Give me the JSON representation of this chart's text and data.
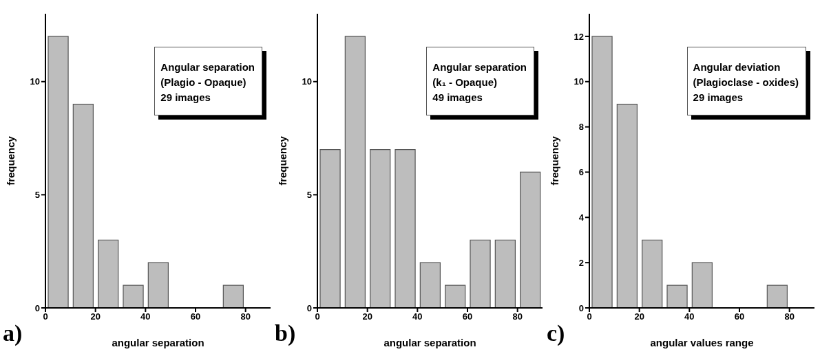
{
  "chart_data": [
    {
      "type": "histogram",
      "bins": [
        0,
        10,
        20,
        30,
        40,
        50,
        60,
        70,
        80
      ],
      "values": [
        12,
        9,
        3,
        1,
        2,
        0,
        0,
        1
      ],
      "color": "#bdbdbd",
      "xlabel": "angular separation",
      "ylabel": "frequency",
      "xlim": [
        0,
        90
      ],
      "xticks": [
        0,
        20,
        40,
        60,
        80
      ],
      "ylim": [
        0,
        13
      ],
      "yticks": [
        0,
        5,
        10
      ],
      "grid": false,
      "annotations": [
        "a)",
        "Angular separation\n(Plagio - Opaque)\n29 images"
      ]
    },
    {
      "type": "histogram",
      "bins": [
        0,
        10,
        20,
        30,
        40,
        50,
        60,
        70,
        80,
        90
      ],
      "values": [
        7,
        12,
        7,
        7,
        2,
        1,
        3,
        3,
        6
      ],
      "color": "#bdbdbd",
      "xlabel": "angular separation",
      "ylabel": "frequency",
      "xlim": [
        0,
        90
      ],
      "xticks": [
        0,
        20,
        40,
        60,
        80
      ],
      "ylim": [
        0,
        13
      ],
      "yticks": [
        0,
        5,
        10
      ],
      "grid": false,
      "annotations": [
        "b)",
        "Angular separation\n(k₁ - Opaque)\n49 images"
      ]
    },
    {
      "type": "histogram",
      "bins": [
        0,
        10,
        20,
        30,
        40,
        50,
        60,
        70,
        80
      ],
      "values": [
        12,
        9,
        3,
        1,
        2,
        0,
        0,
        1
      ],
      "color": "#bdbdbd",
      "xlabel": "angular values range",
      "ylabel": "frequency",
      "xlim": [
        0,
        90
      ],
      "xticks": [
        0,
        20,
        40,
        60,
        80
      ],
      "ylim": [
        0,
        13
      ],
      "yticks": [
        0,
        2,
        4,
        6,
        8,
        10,
        12
      ],
      "grid": false,
      "annotations": [
        "c)",
        "Angular deviation\n(Plagioclase - oxides)\n29 images"
      ]
    }
  ]
}
